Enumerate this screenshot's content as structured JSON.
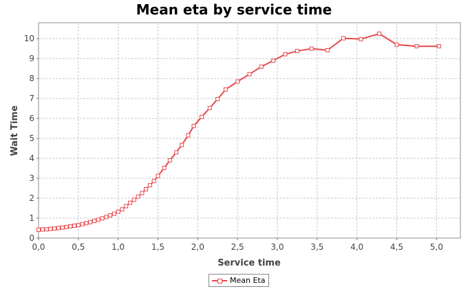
{
  "chart_data": {
    "type": "line",
    "title": "Mean eta by service time",
    "xlabel": "Service time",
    "ylabel": "Wait Time",
    "xlim": [
      0.0,
      5.3
    ],
    "ylim": [
      0,
      10.8
    ],
    "xticks": [
      "0,0",
      "0,5",
      "1,0",
      "1,5",
      "2,0",
      "2,5",
      "3,0",
      "3,5",
      "4,0",
      "4,5",
      "5,0"
    ],
    "yticks": [
      "0",
      "1",
      "2",
      "3",
      "4",
      "5",
      "6",
      "7",
      "8",
      "9",
      "10"
    ],
    "grid": true,
    "legend_position": "bottom-center",
    "series": [
      {
        "name": "Mean Eta",
        "color": "#e8474c",
        "marker": "square",
        "x": [
          0.0,
          0.05,
          0.1,
          0.15,
          0.2,
          0.25,
          0.3,
          0.35,
          0.4,
          0.45,
          0.5,
          0.55,
          0.6,
          0.65,
          0.7,
          0.75,
          0.8,
          0.85,
          0.9,
          0.95,
          1.0,
          1.05,
          1.1,
          1.15,
          1.2,
          1.25,
          1.3,
          1.35,
          1.4,
          1.45,
          1.5,
          1.58,
          1.65,
          1.73,
          1.8,
          1.88,
          1.95,
          2.05,
          2.15,
          2.25,
          2.35,
          2.5,
          2.65,
          2.8,
          2.95,
          3.1,
          3.25,
          3.43,
          3.63,
          3.83,
          4.05,
          4.28,
          4.5,
          4.75,
          5.03
        ],
        "y": [
          0.42,
          0.43,
          0.44,
          0.46,
          0.48,
          0.5,
          0.53,
          0.56,
          0.59,
          0.62,
          0.65,
          0.7,
          0.75,
          0.8,
          0.86,
          0.92,
          0.99,
          1.06,
          1.14,
          1.22,
          1.32,
          1.44,
          1.6,
          1.77,
          1.92,
          2.08,
          2.26,
          2.45,
          2.65,
          2.86,
          3.12,
          3.52,
          3.9,
          4.3,
          4.67,
          5.15,
          5.62,
          6.08,
          6.52,
          6.97,
          7.45,
          7.85,
          8.22,
          8.6,
          8.9,
          9.22,
          9.38,
          9.5,
          9.42,
          10.02,
          9.98,
          10.25,
          9.7,
          9.62,
          9.62
        ]
      }
    ]
  }
}
